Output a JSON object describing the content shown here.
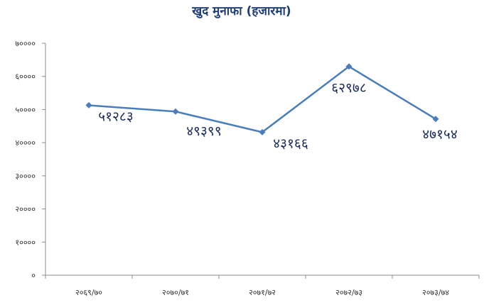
{
  "chart_data": {
    "type": "line",
    "title": "खुद मुनाफा (हजारमा)",
    "xlabel": "",
    "ylabel": "",
    "categories": [
      "२०६९/७०",
      "२०७०/७१",
      "२०७१/७२",
      "२०७२/७३",
      "२०७३/७४"
    ],
    "series": [
      {
        "values": [
          51283,
          49399,
          43166,
          62978,
          47154
        ],
        "labels": [
          "५१२८३",
          "४९३९९",
          "४३१६६",
          "६२९७८",
          "४७१५४"
        ]
      }
    ],
    "ylim": [
      0,
      70000
    ],
    "yticks": [
      {
        "value": 0,
        "label": "०"
      },
      {
        "value": 10000,
        "label": "१००००"
      },
      {
        "value": 20000,
        "label": "२००००"
      },
      {
        "value": 30000,
        "label": "३००००"
      },
      {
        "value": 40000,
        "label": "४००००"
      },
      {
        "value": 50000,
        "label": "५००००"
      },
      {
        "value": 60000,
        "label": "६००००"
      },
      {
        "value": 70000,
        "label": "७००००"
      }
    ],
    "grid": false,
    "legend": "none",
    "colors": {
      "series": "#4a7ebb",
      "title": "#1f3e78",
      "labels": "#1a2a5c"
    }
  }
}
